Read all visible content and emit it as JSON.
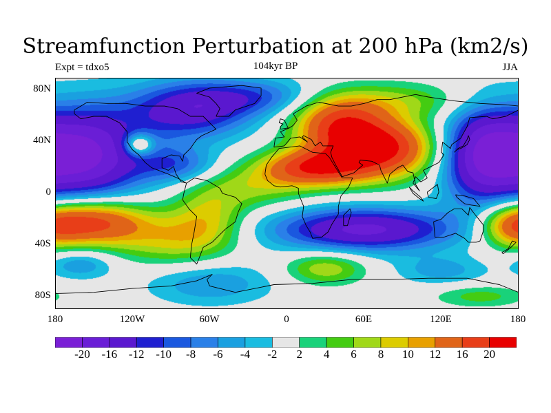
{
  "title": "Streamfunction Perturbation at 200 hPa (km2/s)",
  "left_label": "Expt = tdxo5",
  "center_label": "104kyr BP",
  "right_label": "JJA",
  "lat_labels": [
    "80N",
    "40N",
    "0",
    "40S",
    "80S"
  ],
  "lon_labels": [
    "180",
    "120W",
    "60W",
    "0",
    "60E",
    "120E",
    "180"
  ],
  "colorbar": {
    "colors": [
      "#7a1fd6",
      "#6a1ed6",
      "#5a18cf",
      "#1f1fd0",
      "#1a58df",
      "#2a80e8",
      "#1aa0e0",
      "#1abce0",
      "#e6e6e6",
      "#19d27a",
      "#44cc12",
      "#a0d818",
      "#dccc00",
      "#e8a000",
      "#e06418",
      "#e83e18",
      "#e80000"
    ],
    "labels": [
      "-20",
      "-16",
      "-12",
      "-10",
      "-8",
      "-6",
      "-4",
      "-2",
      "2",
      "4",
      "6",
      "8",
      "10",
      "12",
      "16",
      "20"
    ]
  },
  "map_data": {
    "background": "#e6e6e6",
    "levels": [
      -20,
      -16,
      -12,
      -10,
      -8,
      -6,
      -4,
      -2,
      2,
      4,
      6,
      8,
      10,
      12,
      16,
      20
    ],
    "sources": [
      {
        "lon": -160,
        "lat": 30,
        "amp": -22,
        "rx": 34,
        "ry": 26
      },
      {
        "lon": 150,
        "lat": 30,
        "amp": -16,
        "rx": 22,
        "ry": 26
      },
      {
        "lon": -75,
        "lat": 65,
        "amp": -14,
        "rx": 34,
        "ry": 16
      },
      {
        "lon": -20,
        "lat": 75,
        "amp": -8,
        "rx": 35,
        "ry": 10
      },
      {
        "lon": -85,
        "lat": 22,
        "amp": -8,
        "rx": 22,
        "ry": 10
      },
      {
        "lon": -115,
        "lat": 38,
        "amp": 12,
        "rx": 8,
        "ry": 6
      },
      {
        "lon": 70,
        "lat": 35,
        "amp": 22,
        "rx": 32,
        "ry": 16
      },
      {
        "lon": 20,
        "lat": 20,
        "amp": 17,
        "rx": 28,
        "ry": 10
      },
      {
        "lon": 40,
        "lat": 55,
        "amp": 14,
        "rx": 25,
        "ry": 14
      },
      {
        "lon": 80,
        "lat": 72,
        "amp": 6,
        "rx": 50,
        "ry": 10
      },
      {
        "lon": -25,
        "lat": 5,
        "amp": 6,
        "rx": 30,
        "ry": 12
      },
      {
        "lon": -150,
        "lat": -22,
        "amp": 18,
        "rx": 28,
        "ry": 13
      },
      {
        "lon": 175,
        "lat": -25,
        "amp": 12,
        "rx": 18,
        "ry": 12
      },
      {
        "lon": -90,
        "lat": -35,
        "amp": 8,
        "rx": 30,
        "ry": 15
      },
      {
        "lon": -60,
        "lat": -18,
        "amp": 7,
        "rx": 20,
        "ry": 18
      },
      {
        "lon": 60,
        "lat": -28,
        "amp": -17,
        "rx": 50,
        "ry": 12
      },
      {
        "lon": 30,
        "lat": -58,
        "amp": 8,
        "rx": 22,
        "ry": 9
      },
      {
        "lon": -60,
        "lat": -70,
        "amp": -6,
        "rx": 35,
        "ry": 12
      },
      {
        "lon": -160,
        "lat": -55,
        "amp": -6,
        "rx": 18,
        "ry": 8
      },
      {
        "lon": 120,
        "lat": -60,
        "amp": -5,
        "rx": 25,
        "ry": 8
      },
      {
        "lon": 150,
        "lat": -80,
        "amp": 5,
        "rx": 25,
        "ry": 6
      }
    ],
    "coastlines": [
      {
        "name": "north-america",
        "lonlat": [
          [
            -165,
            65
          ],
          [
            -155,
            71
          ],
          [
            -140,
            70
          ],
          [
            -125,
            70
          ],
          [
            -110,
            68
          ],
          [
            -95,
            68
          ],
          [
            -85,
            66
          ],
          [
            -80,
            63
          ],
          [
            -75,
            60
          ],
          [
            -65,
            60
          ],
          [
            -60,
            55
          ],
          [
            -55,
            50
          ],
          [
            -66,
            45
          ],
          [
            -70,
            42
          ],
          [
            -75,
            35
          ],
          [
            -80,
            30
          ],
          [
            -81,
            25
          ],
          [
            -83,
            29
          ],
          [
            -90,
            30
          ],
          [
            -97,
            27
          ],
          [
            -97,
            20
          ],
          [
            -92,
            18
          ],
          [
            -88,
            21
          ],
          [
            -86,
            15
          ],
          [
            -82,
            9
          ],
          [
            -78,
            8
          ],
          [
            -85,
            12
          ],
          [
            -92,
            15
          ],
          [
            -105,
            20
          ],
          [
            -110,
            24
          ],
          [
            -115,
            30
          ],
          [
            -120,
            34
          ],
          [
            -124,
            40
          ],
          [
            -124,
            48
          ],
          [
            -130,
            55
          ],
          [
            -140,
            60
          ],
          [
            -150,
            60
          ],
          [
            -160,
            58
          ],
          [
            -165,
            62
          ],
          [
            -165,
            65
          ]
        ]
      },
      {
        "name": "south-america",
        "lonlat": [
          [
            -78,
            8
          ],
          [
            -72,
            12
          ],
          [
            -62,
            10
          ],
          [
            -52,
            4
          ],
          [
            -50,
            0
          ],
          [
            -40,
            -3
          ],
          [
            -35,
            -8
          ],
          [
            -38,
            -15
          ],
          [
            -40,
            -22
          ],
          [
            -48,
            -28
          ],
          [
            -55,
            -35
          ],
          [
            -58,
            -38
          ],
          [
            -65,
            -42
          ],
          [
            -68,
            -50
          ],
          [
            -70,
            -55
          ],
          [
            -75,
            -50
          ],
          [
            -74,
            -40
          ],
          [
            -72,
            -30
          ],
          [
            -70,
            -18
          ],
          [
            -76,
            -12
          ],
          [
            -81,
            -5
          ],
          [
            -80,
            0
          ],
          [
            -78,
            8
          ]
        ]
      },
      {
        "name": "greenland",
        "lonlat": [
          [
            -55,
            60
          ],
          [
            -45,
            60
          ],
          [
            -40,
            65
          ],
          [
            -25,
            70
          ],
          [
            -20,
            76
          ],
          [
            -20,
            82
          ],
          [
            -35,
            84
          ],
          [
            -60,
            82
          ],
          [
            -70,
            78
          ],
          [
            -60,
            75
          ],
          [
            -55,
            70
          ],
          [
            -52,
            66
          ],
          [
            -55,
            60
          ]
        ]
      },
      {
        "name": "africa",
        "lonlat": [
          [
            -17,
            15
          ],
          [
            -16,
            22
          ],
          [
            -12,
            28
          ],
          [
            -6,
            35
          ],
          [
            10,
            37
          ],
          [
            20,
            32
          ],
          [
            30,
            31
          ],
          [
            33,
            28
          ],
          [
            38,
            20
          ],
          [
            43,
            12
          ],
          [
            51,
            12
          ],
          [
            48,
            5
          ],
          [
            42,
            -2
          ],
          [
            40,
            -10
          ],
          [
            40,
            -16
          ],
          [
            35,
            -24
          ],
          [
            32,
            -30
          ],
          [
            27,
            -34
          ],
          [
            20,
            -35
          ],
          [
            18,
            -30
          ],
          [
            15,
            -25
          ],
          [
            12,
            -18
          ],
          [
            13,
            -10
          ],
          [
            9,
            0
          ],
          [
            9,
            4
          ],
          [
            4,
            6
          ],
          [
            -5,
            5
          ],
          [
            -10,
            6
          ],
          [
            -15,
            10
          ],
          [
            -17,
            15
          ]
        ]
      },
      {
        "name": "eurasia",
        "lonlat": [
          [
            -10,
            36
          ],
          [
            -9,
            43
          ],
          [
            -2,
            44
          ],
          [
            -5,
            48
          ],
          [
            2,
            51
          ],
          [
            5,
            53
          ],
          [
            8,
            57
          ],
          [
            5,
            62
          ],
          [
            15,
            68
          ],
          [
            25,
            71
          ],
          [
            40,
            68
          ],
          [
            50,
            68
          ],
          [
            60,
            70
          ],
          [
            70,
            73
          ],
          [
            80,
            73
          ],
          [
            100,
            77
          ],
          [
            110,
            75
          ],
          [
            130,
            72
          ],
          [
            150,
            70
          ],
          [
            170,
            69
          ],
          [
            180,
            68
          ],
          [
            180,
            65
          ],
          [
            170,
            60
          ],
          [
            160,
            58
          ],
          [
            155,
            60
          ],
          [
            142,
            59
          ],
          [
            140,
            52
          ],
          [
            135,
            43
          ],
          [
            128,
            38
          ],
          [
            127,
            35
          ],
          [
            121,
            40
          ],
          [
            120,
            32
          ],
          [
            122,
            30
          ],
          [
            118,
            24
          ],
          [
            110,
            20
          ],
          [
            106,
            18
          ],
          [
            109,
            12
          ],
          [
            104,
            9
          ],
          [
            100,
            13
          ],
          [
            98,
            8
          ],
          [
            103,
            2
          ],
          [
            100,
            7
          ],
          [
            98,
            16
          ],
          [
            94,
            17
          ],
          [
            90,
            22
          ],
          [
            86,
            20
          ],
          [
            80,
            15
          ],
          [
            78,
            8
          ],
          [
            73,
            18
          ],
          [
            72,
            22
          ],
          [
            66,
            25
          ],
          [
            57,
            26
          ],
          [
            56,
            24
          ],
          [
            59,
            22
          ],
          [
            52,
            16
          ],
          [
            43,
            13
          ],
          [
            38,
            22
          ],
          [
            35,
            28
          ],
          [
            34,
            32
          ],
          [
            36,
            37
          ],
          [
            28,
            37
          ],
          [
            26,
            40
          ],
          [
            22,
            37
          ],
          [
            19,
            42
          ],
          [
            13,
            45
          ],
          [
            12,
            44
          ],
          [
            16,
            40
          ],
          [
            10,
            44
          ],
          [
            3,
            43
          ],
          [
            -2,
            37
          ],
          [
            -10,
            36
          ]
        ]
      },
      {
        "name": "australia",
        "lonlat": [
          [
            114,
            -22
          ],
          [
            115,
            -34
          ],
          [
            122,
            -34
          ],
          [
            131,
            -31
          ],
          [
            138,
            -35
          ],
          [
            141,
            -38
          ],
          [
            147,
            -38
          ],
          [
            150,
            -37
          ],
          [
            153,
            -28
          ],
          [
            153,
            -25
          ],
          [
            145,
            -15
          ],
          [
            142,
            -11
          ],
          [
            141,
            -17
          ],
          [
            136,
            -12
          ],
          [
            130,
            -12
          ],
          [
            125,
            -15
          ],
          [
            120,
            -20
          ],
          [
            114,
            -22
          ]
        ]
      },
      {
        "name": "antarctica",
        "lonlat": [
          [
            -180,
            -78
          ],
          [
            -150,
            -77
          ],
          [
            -120,
            -74
          ],
          [
            -90,
            -72
          ],
          [
            -70,
            -68
          ],
          [
            -58,
            -63
          ],
          [
            -62,
            -67
          ],
          [
            -60,
            -72
          ],
          [
            -40,
            -77
          ],
          [
            -10,
            -71
          ],
          [
            20,
            -70
          ],
          [
            50,
            -67
          ],
          [
            80,
            -67
          ],
          [
            110,
            -66
          ],
          [
            140,
            -66
          ],
          [
            165,
            -71
          ],
          [
            180,
            -77
          ]
        ]
      },
      {
        "name": "britain",
        "lonlat": [
          [
            -5,
            50
          ],
          [
            1,
            51
          ],
          [
            0,
            53
          ],
          [
            -2,
            57
          ],
          [
            -5,
            58
          ],
          [
            -6,
            55
          ],
          [
            -3,
            54
          ],
          [
            -5,
            52
          ],
          [
            -5,
            50
          ]
        ]
      },
      {
        "name": "japan",
        "lonlat": [
          [
            130,
            32
          ],
          [
            132,
            34
          ],
          [
            135,
            35
          ],
          [
            140,
            38
          ],
          [
            142,
            42
          ],
          [
            141,
            45
          ],
          [
            140,
            42
          ],
          [
            137,
            37
          ],
          [
            133,
            35
          ],
          [
            130,
            32
          ]
        ]
      },
      {
        "name": "madagascar",
        "lonlat": [
          [
            44,
            -25
          ],
          [
            47,
            -25
          ],
          [
            50,
            -15
          ],
          [
            49,
            -12
          ],
          [
            44,
            -17
          ],
          [
            44,
            -25
          ]
        ]
      },
      {
        "name": "new-zealand",
        "lonlat": [
          [
            167,
            -46
          ],
          [
            172,
            -43
          ],
          [
            175,
            -37
          ],
          [
            178,
            -38
          ],
          [
            174,
            -42
          ],
          [
            168,
            -47
          ],
          [
            167,
            -46
          ]
        ]
      },
      {
        "name": "borneo",
        "lonlat": [
          [
            109,
            1
          ],
          [
            110,
            -3
          ],
          [
            116,
            -4
          ],
          [
            118,
            1
          ],
          [
            117,
            7
          ],
          [
            113,
            4
          ],
          [
            109,
            1
          ]
        ]
      },
      {
        "name": "sumatra",
        "lonlat": [
          [
            95,
            5
          ],
          [
            98,
            2
          ],
          [
            104,
            -3
          ],
          [
            106,
            -6
          ],
          [
            103,
            -4
          ],
          [
            98,
            0
          ],
          [
            95,
            5
          ]
        ]
      },
      {
        "name": "new-guinea",
        "lonlat": [
          [
            131,
            -1
          ],
          [
            138,
            -2
          ],
          [
            145,
            -4
          ],
          [
            150,
            -10
          ],
          [
            143,
            -9
          ],
          [
            138,
            -8
          ],
          [
            132,
            -3
          ],
          [
            131,
            -1
          ]
        ]
      }
    ]
  }
}
